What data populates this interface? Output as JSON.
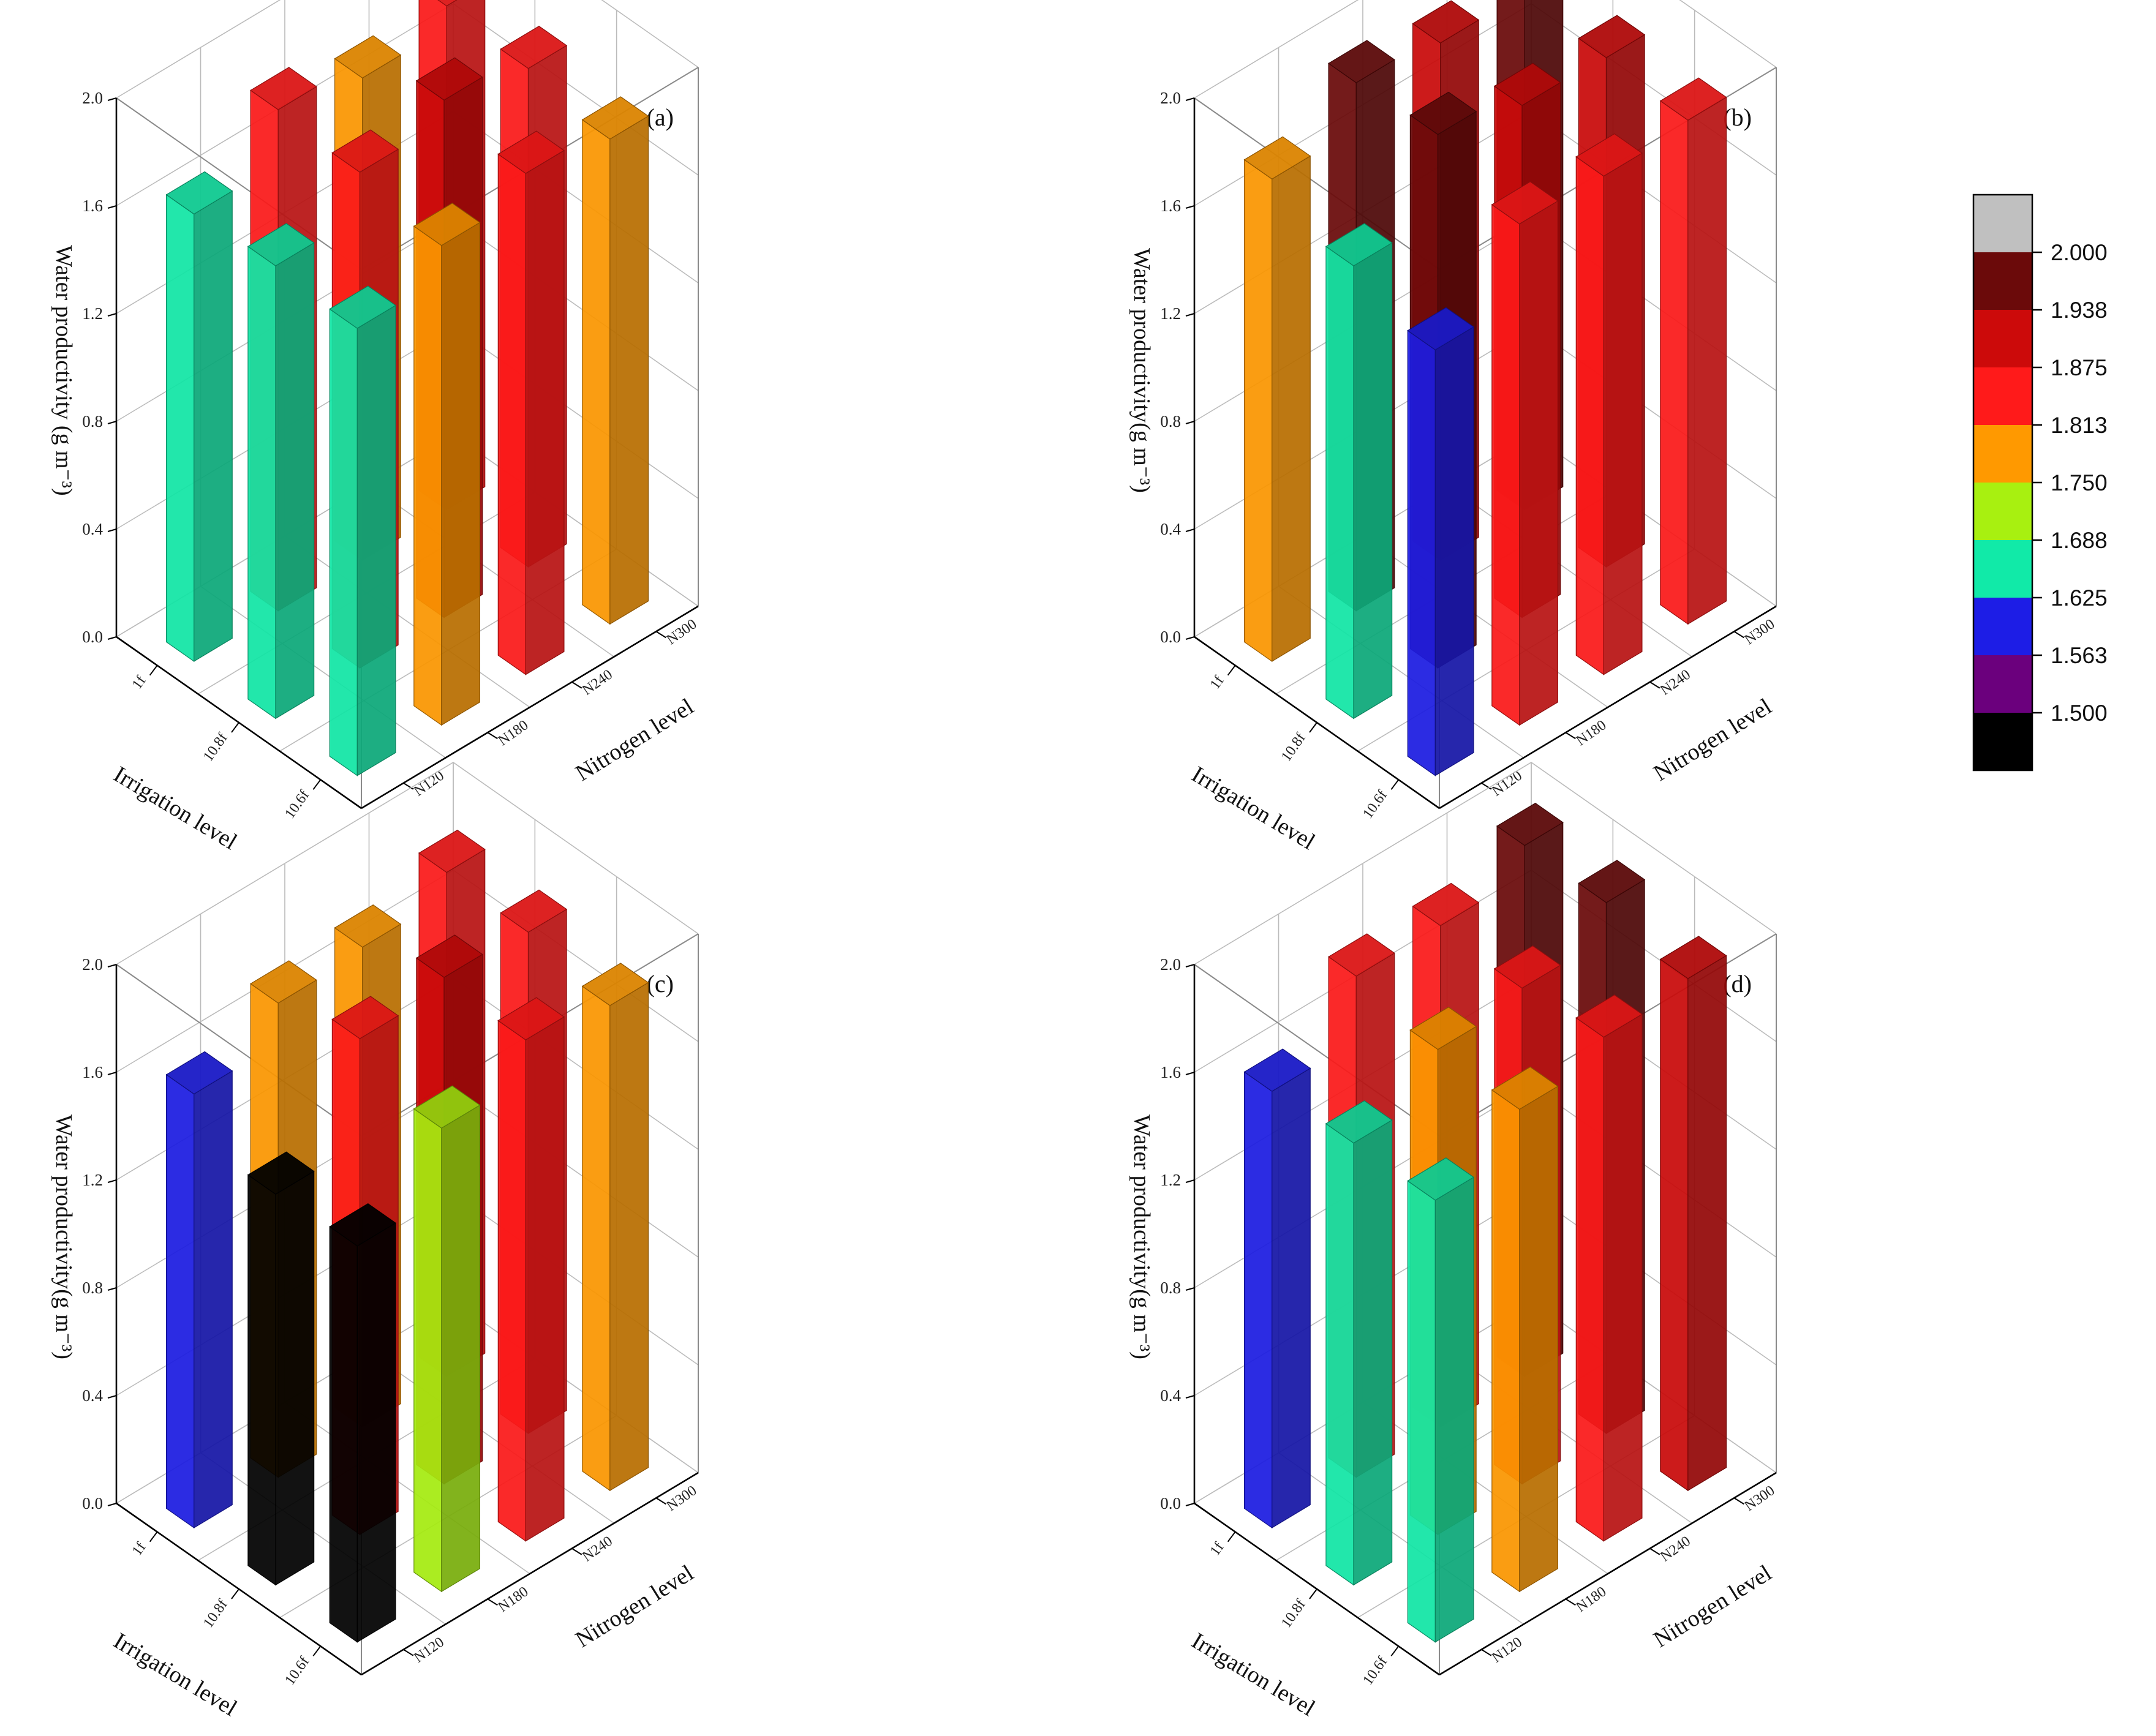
{
  "chart_data": [
    {
      "type": "bar3d",
      "panel_label": "(a)",
      "ylabel": "Water productivity (g m⁻³)",
      "xlabel": "Irrigation level",
      "zlabel": "Nitrogen level",
      "irrigation_levels": [
        "1f",
        "10.8f",
        "10.6f"
      ],
      "nitrogen_levels": [
        "N120",
        "N180",
        "N240",
        "N300"
      ],
      "ylim": [
        0,
        2.0
      ],
      "yticks": [
        "0.0",
        "0.4",
        "0.8",
        "1.2",
        "1.6",
        "2.0"
      ],
      "values": [
        [
          1.66,
          1.86,
          1.79,
          1.87
        ],
        [
          1.68,
          1.84,
          1.92,
          1.85
        ],
        [
          1.66,
          1.78,
          1.86,
          1.8
        ]
      ]
    },
    {
      "type": "bar3d",
      "panel_label": "(b)",
      "ylabel": "Water productivity(g m⁻³)",
      "xlabel": "Irrigation level",
      "zlabel": "Nitrogen level",
      "irrigation_levels": [
        "1f",
        "10.8f",
        "10.6f"
      ],
      "nitrogen_levels": [
        "N120",
        "N180",
        "N240",
        "N300"
      ],
      "ylim": [
        0,
        2.0
      ],
      "yticks": [
        "0.0",
        "0.4",
        "0.8",
        "1.2",
        "1.6",
        "2.0"
      ],
      "values": [
        [
          1.79,
          1.96,
          1.92,
          1.98
        ],
        [
          1.68,
          1.98,
          1.9,
          1.89
        ],
        [
          1.58,
          1.86,
          1.85,
          1.87
        ]
      ]
    },
    {
      "type": "bar3d",
      "panel_label": "(c)",
      "ylabel": "Water productivity(g m⁻³)",
      "xlabel": "Irrigation level",
      "zlabel": "Nitrogen level",
      "irrigation_levels": [
        "1f",
        "10.8f",
        "10.6f"
      ],
      "nitrogen_levels": [
        "N120",
        "N180",
        "N240",
        "N300"
      ],
      "ylim": [
        0,
        2.0
      ],
      "yticks": [
        "0.0",
        "0.4",
        "0.8",
        "1.2",
        "1.6",
        "2.0"
      ],
      "values": [
        [
          1.61,
          1.76,
          1.78,
          1.87
        ],
        [
          1.45,
          1.84,
          1.88,
          1.86
        ],
        [
          1.47,
          1.72,
          1.86,
          1.8
        ]
      ]
    },
    {
      "type": "bar3d",
      "panel_label": "(d)",
      "ylabel": "Water productivity(g m⁻³)",
      "xlabel": "Irrigation level",
      "zlabel": "Nitrogen level",
      "irrigation_levels": [
        "1f",
        "10.8f",
        "10.6f"
      ],
      "nitrogen_levels": [
        "N120",
        "N180",
        "N240",
        "N300"
      ],
      "ylim": [
        0,
        2.0
      ],
      "yticks": [
        "0.0",
        "0.4",
        "0.8",
        "1.2",
        "1.6",
        "2.0"
      ],
      "values": [
        [
          1.62,
          1.86,
          1.86,
          1.97
        ],
        [
          1.64,
          1.8,
          1.84,
          1.97
        ],
        [
          1.64,
          1.79,
          1.87,
          1.9
        ]
      ]
    }
  ],
  "colorbar": {
    "labels": [
      "2.000",
      "1.938",
      "1.875",
      "1.813",
      "1.750",
      "1.688",
      "1.625",
      "1.563",
      "1.500"
    ],
    "colors": [
      "#c0c0c0",
      "#6b0a0a",
      "#cc0a0a",
      "#ff1a1a",
      "#ff9900",
      "#a8f010",
      "#11eaa8",
      "#1d1de6",
      "#6b007d",
      "#000000"
    ]
  }
}
